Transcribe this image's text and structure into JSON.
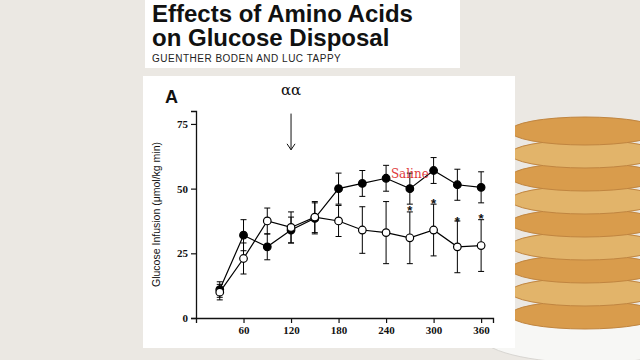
{
  "chart_data": {
    "type": "line",
    "title": [
      "Effects of Amino Acids",
      "on Glucose Disposal"
    ],
    "subtitle": "GUENTHER BODEN AND LUC TAPPY",
    "panel_label": "A",
    "y_label": "Glucose Infusion (μmol/kg min)",
    "x": [
      30,
      60,
      90,
      120,
      150,
      180,
      210,
      240,
      270,
      300,
      330,
      360
    ],
    "xlim": [
      0,
      375
    ],
    "xticks": [
      60,
      120,
      180,
      240,
      300,
      360
    ],
    "ylim": [
      0,
      80
    ],
    "yticks": [
      0,
      25,
      50,
      75
    ],
    "grid": false,
    "series": [
      {
        "color": "#000000",
        "marker": "filled-circle",
        "line_style": "solid",
        "values": [
          11,
          32,
          27.5,
          34,
          38.5,
          50,
          52,
          54,
          50,
          57,
          51.5,
          50.5
        ],
        "errors": [
          3,
          6,
          5,
          5,
          6,
          6,
          5,
          5,
          6,
          5,
          6,
          6
        ]
      },
      {
        "color": "#000000",
        "marker": "open-circle",
        "line_style": "solid",
        "values": [
          10,
          23,
          37.5,
          35,
          39,
          37.5,
          34,
          33,
          31,
          34,
          27.5,
          28
        ],
        "errors": [
          3,
          6,
          5,
          6,
          6,
          6,
          9,
          12,
          10,
          10,
          10,
          10
        ]
      }
    ],
    "annotations": [
      {
        "text": "αα",
        "x": 120,
        "y": 86,
        "arrow": [
          79,
          65
        ]
      },
      {
        "text": "Saline",
        "x": 270,
        "y": 54,
        "color": "#e03a3a"
      },
      {
        "text": "*",
        "x": 270,
        "y": 42
      },
      {
        "text": "*",
        "x": 300,
        "y": 45
      },
      {
        "text": "*",
        "x": 330,
        "y": 38
      },
      {
        "text": "*",
        "x": 360,
        "y": 39
      }
    ]
  }
}
